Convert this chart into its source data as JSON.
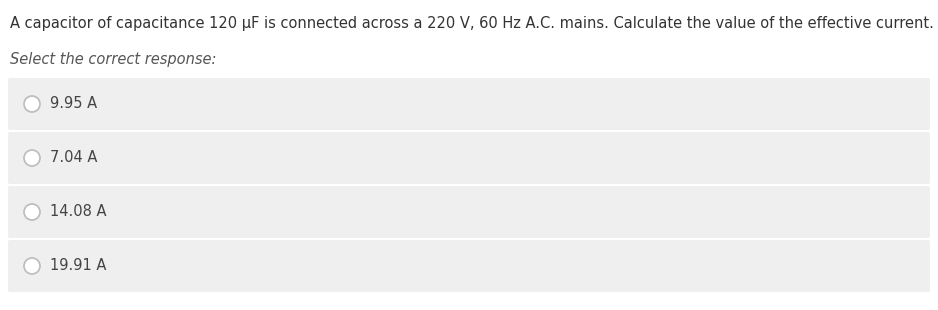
{
  "question": "A capacitor of capacitance 120 µF is connected across a 220 V, 60 Hz A.C. mains. Calculate the value of the effective current.",
  "prompt": "Select the correct response:",
  "options": [
    "9.95 A",
    "7.04 A",
    "14.08 A",
    "19.91 A"
  ],
  "background_color": "#ffffff",
  "option_box_color": "#efefef",
  "question_text_color": "#333333",
  "prompt_text_color": "#555555",
  "option_text_color": "#444444",
  "circle_edge_color": "#bbbbbb",
  "question_fontsize": 10.5,
  "prompt_fontsize": 10.5,
  "option_fontsize": 10.5
}
